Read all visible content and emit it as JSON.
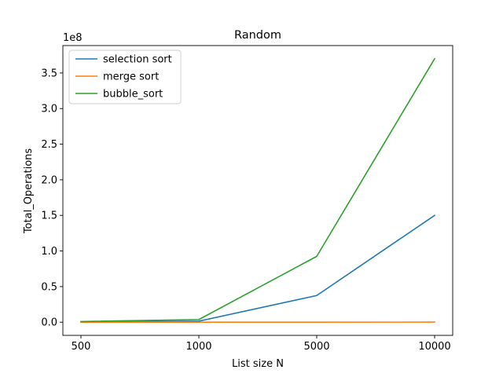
{
  "chart_data": {
    "type": "line",
    "title": "Random",
    "xlabel": "List size N",
    "ylabel": "Total_Operations",
    "categories": [
      "500",
      "1000",
      "5000",
      "10000"
    ],
    "y_offset_label": "1e8",
    "ylim": [
      -0.185,
      3.885
    ],
    "yticks": [
      0.0,
      0.5,
      1.0,
      1.5,
      2.0,
      2.5,
      3.0,
      3.5
    ],
    "ytick_labels": [
      "0.0",
      "0.5",
      "1.0",
      "1.5",
      "2.0",
      "2.5",
      "3.0",
      "3.5"
    ],
    "grid": false,
    "legend_position": "top-left",
    "series": [
      {
        "name": "selection sort",
        "color": "#1f77b4",
        "values": [
          0.00375,
          0.015,
          0.375,
          1.5
        ]
      },
      {
        "name": "merge sort",
        "color": "#ff7f0e",
        "values": [
          5e-05,
          0.0001,
          0.0006,
          0.0013
        ]
      },
      {
        "name": "bubble_sort",
        "color": "#2ca02c",
        "values": [
          0.0093,
          0.037,
          0.925,
          3.7
        ]
      }
    ]
  }
}
